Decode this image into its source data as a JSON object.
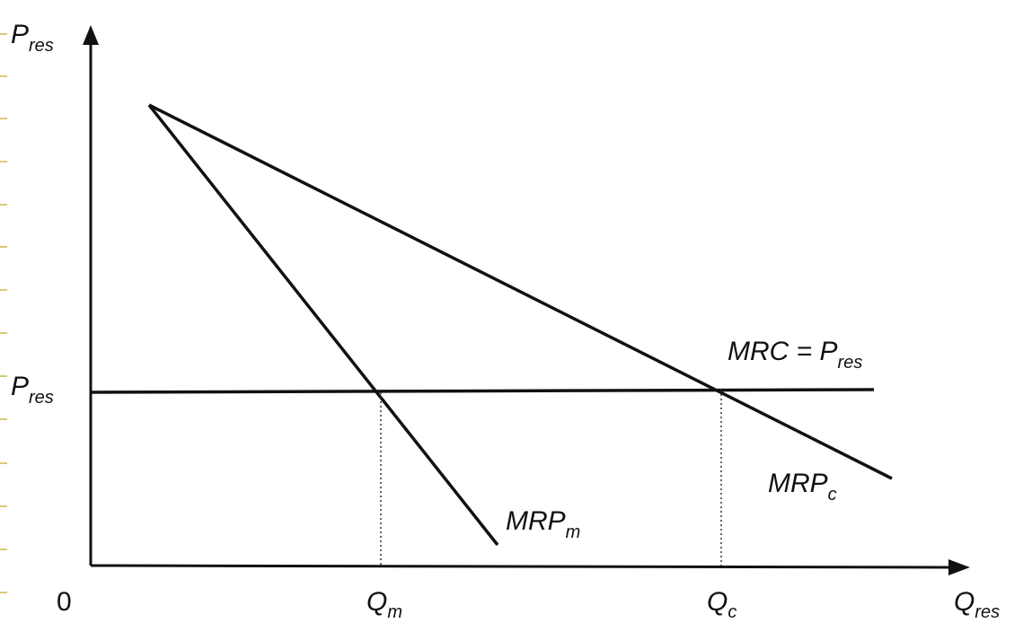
{
  "diagram": {
    "y_axis": {
      "main": "P",
      "sub": "res"
    },
    "x_axis": {
      "main": "Q",
      "sub": "res"
    },
    "origin": "0",
    "price_level": {
      "main": "P",
      "sub": "res"
    },
    "mrc_line": {
      "main": "MRC = P",
      "sub": "res"
    },
    "mrp_m": {
      "main": "MRP",
      "sub": "m"
    },
    "mrp_c": {
      "main": "MRP",
      "sub": "c"
    },
    "q_m": {
      "main": "Q",
      "sub": "m"
    },
    "q_c": {
      "main": "Q",
      "sub": "c"
    },
    "colors": {
      "ink": "#111111",
      "margin_tick": "#c8b84a",
      "background": "#ffffff"
    }
  }
}
